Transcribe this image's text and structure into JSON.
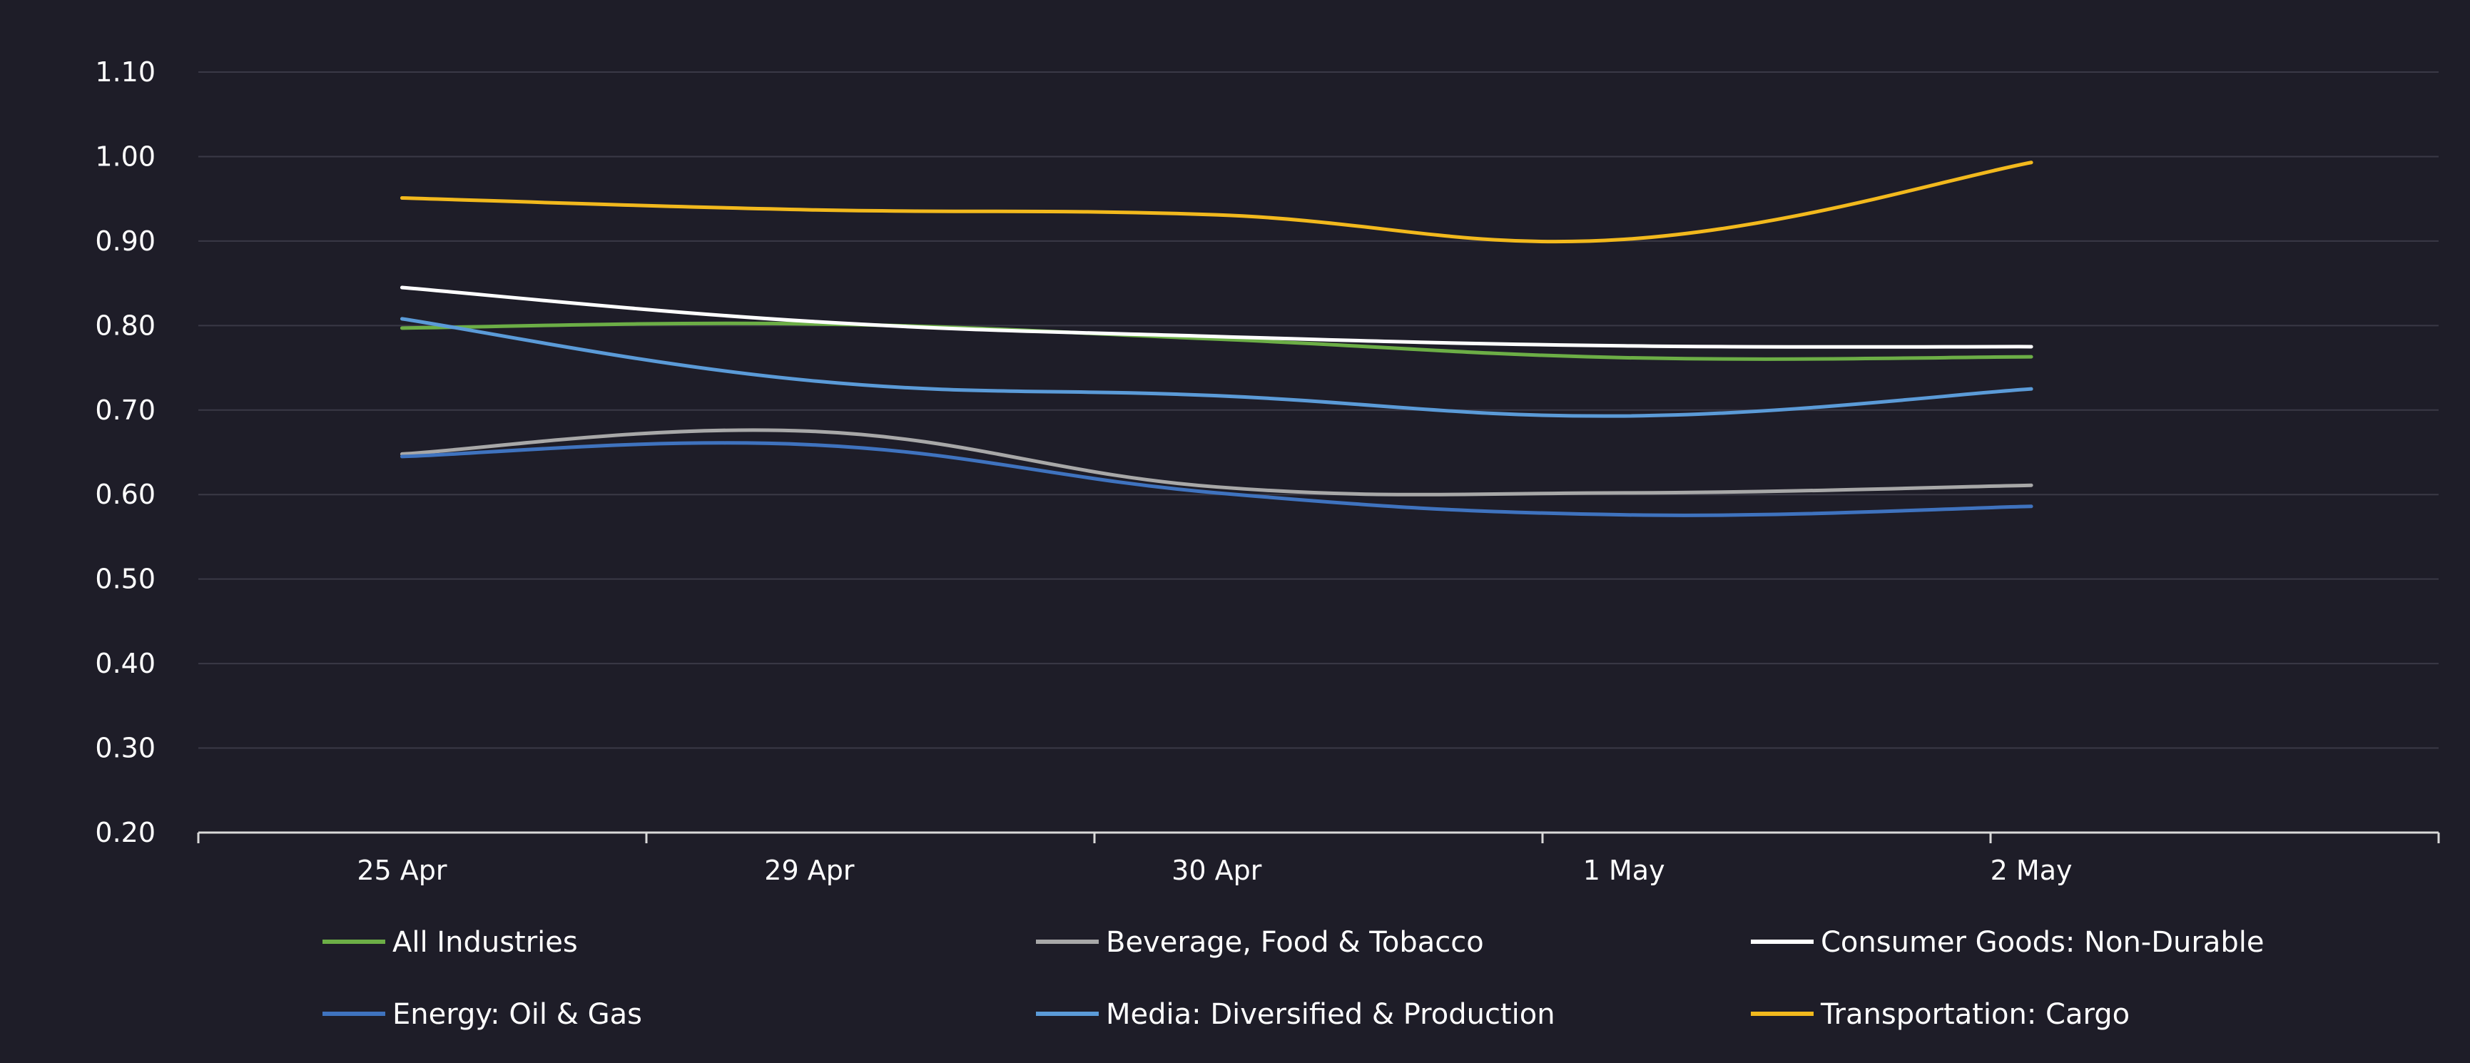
{
  "chart_data": {
    "type": "line",
    "title": "",
    "xlabel": "",
    "ylabel": "",
    "categories": [
      "25 Apr",
      "29 Apr",
      "30 Apr",
      "1 May",
      "2 May"
    ],
    "y_tick_labels": [
      "0.20",
      "0.30",
      "0.40",
      "0.50",
      "0.60",
      "0.70",
      "0.80",
      "0.90",
      "1.00",
      "1.10"
    ],
    "ylim": [
      0.2,
      1.1
    ],
    "grid": true,
    "legend_position": "bottom",
    "series": [
      {
        "name": "All Industries",
        "color": "#6cae46",
        "values": [
          0.797,
          0.802,
          0.784,
          0.762,
          0.763
        ]
      },
      {
        "name": "Beverage, Food & Tobacco",
        "color": "#a8a8a8",
        "values": [
          0.648,
          0.675,
          0.609,
          0.602,
          0.611
        ]
      },
      {
        "name": "Consumer Goods: Non-Durable",
        "color": "#ffffff",
        "values": [
          0.845,
          0.805,
          0.787,
          0.776,
          0.775
        ]
      },
      {
        "name": "Energy: Oil & Gas",
        "color": "#3f73bf",
        "values": [
          0.645,
          0.659,
          0.602,
          0.576,
          0.586
        ]
      },
      {
        "name": "Media: Diversified & Production",
        "color": "#5b9bd8",
        "values": [
          0.808,
          0.735,
          0.717,
          0.693,
          0.725
        ]
      },
      {
        "name": "Transportation: Cargo",
        "color": "#f2b91d",
        "values": [
          0.951,
          0.937,
          0.931,
          0.902,
          0.993
        ]
      }
    ],
    "colors": {
      "background": "#1e1d28",
      "grid": "#3a3946",
      "axis": "#d9d9d9",
      "text": "#ffffff"
    }
  }
}
